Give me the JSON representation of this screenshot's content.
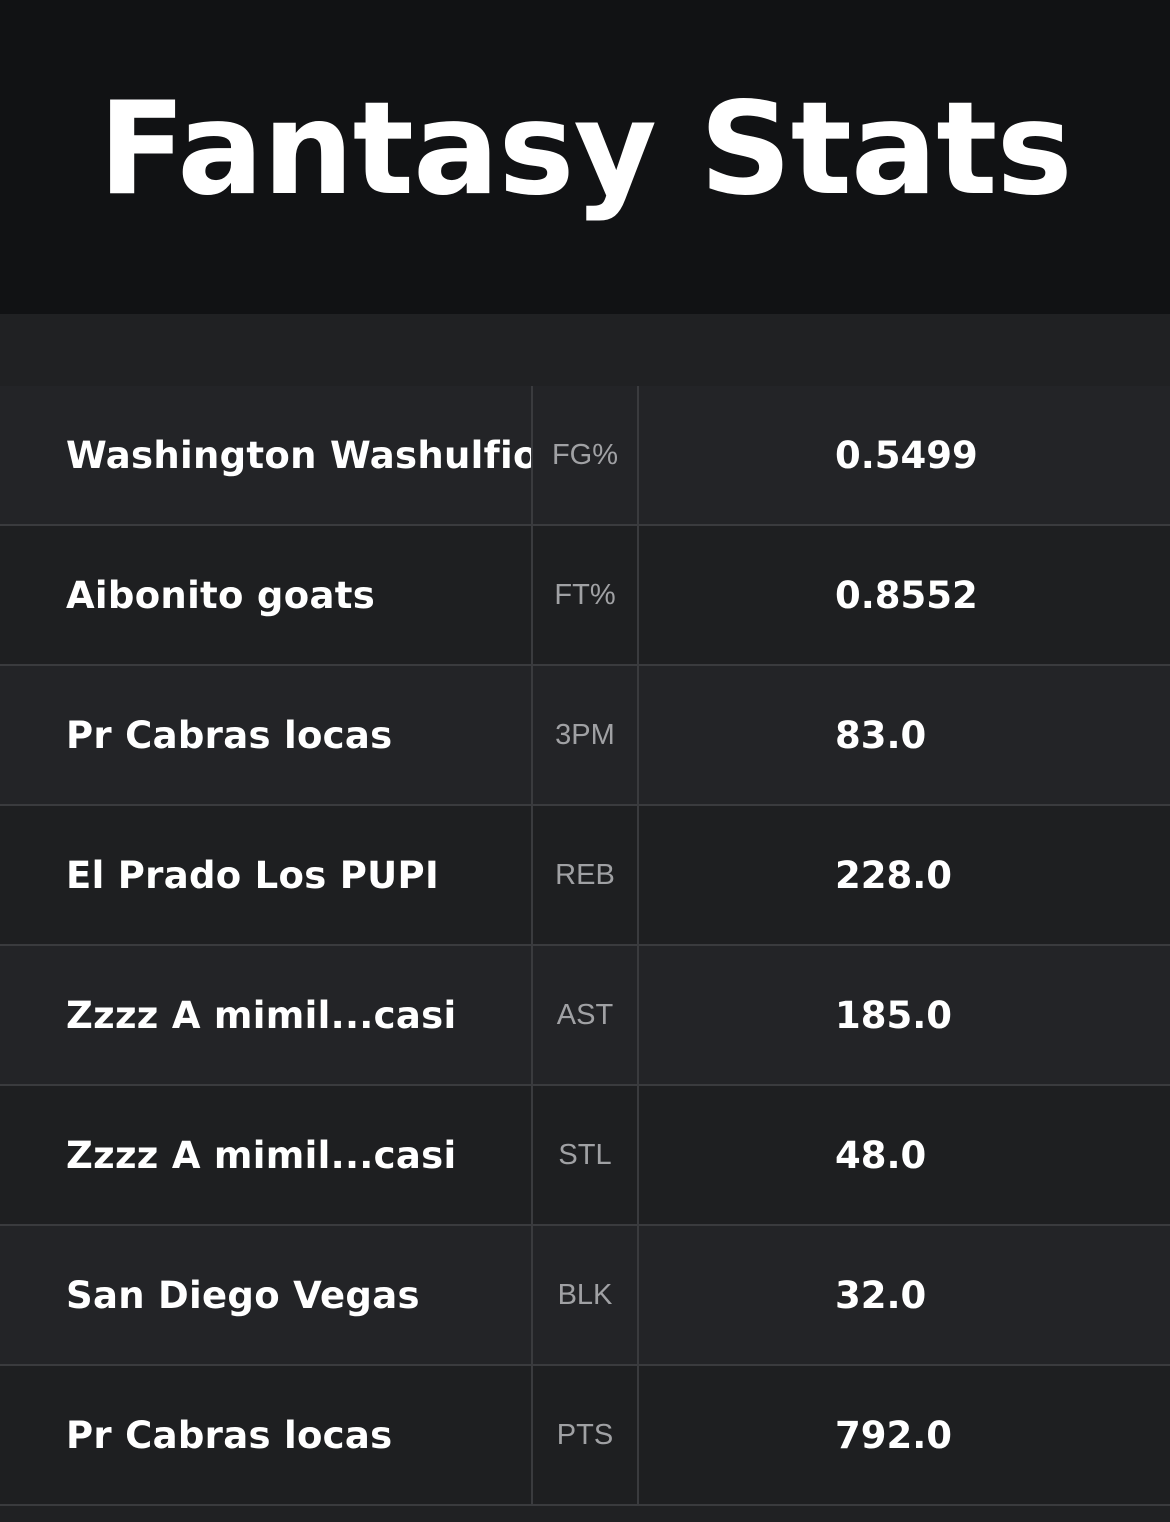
{
  "header": {
    "title": "Fantasy Stats"
  },
  "rows": [
    {
      "team": "Washington Washulfios",
      "category": "FG%",
      "value": "0.5499"
    },
    {
      "team": "Aibonito goats",
      "category": "FT%",
      "value": "0.8552"
    },
    {
      "team": "Pr Cabras locas",
      "category": "3PM",
      "value": "83.0"
    },
    {
      "team": "El Prado Los PUPI",
      "category": "REB",
      "value": "228.0"
    },
    {
      "team": "Zzzz A mimil...casi",
      "category": "AST",
      "value": "185.0"
    },
    {
      "team": "Zzzz A mimil...casi",
      "category": "STL",
      "value": "48.0"
    },
    {
      "team": "San Diego Vegas",
      "category": "BLK",
      "value": "32.0"
    },
    {
      "team": "Pr Cabras locas",
      "category": "PTS",
      "value": "792.0"
    }
  ],
  "colors": {
    "header_bg": "#111214",
    "body_bg": "#202123",
    "row_odd": "#232427",
    "row_even": "#1e1f21",
    "divider": "#3a3b3e",
    "category_text": "#a0a1a4",
    "text": "#ffffff"
  }
}
